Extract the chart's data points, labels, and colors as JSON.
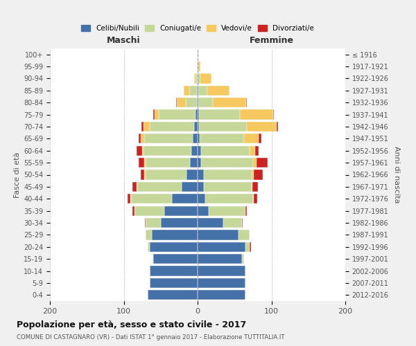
{
  "age_groups": [
    "0-4",
    "5-9",
    "10-14",
    "15-19",
    "20-24",
    "25-29",
    "30-34",
    "35-39",
    "40-44",
    "45-49",
    "50-54",
    "55-59",
    "60-64",
    "65-69",
    "70-74",
    "75-79",
    "80-84",
    "85-89",
    "90-94",
    "95-99",
    "100+"
  ],
  "birth_years": [
    "2012-2016",
    "2007-2011",
    "2002-2006",
    "1997-2001",
    "1992-1996",
    "1987-1991",
    "1982-1986",
    "1977-1981",
    "1972-1976",
    "1967-1971",
    "1962-1966",
    "1957-1961",
    "1952-1956",
    "1947-1951",
    "1942-1946",
    "1937-1941",
    "1932-1936",
    "1927-1931",
    "1922-1926",
    "1917-1921",
    "≤ 1916"
  ],
  "colors": {
    "celibi": "#4472a8",
    "coniugati": "#c5d89a",
    "vedovi": "#f5c860",
    "divorziati": "#cc2222"
  },
  "maschi": {
    "celibi": [
      68,
      65,
      65,
      60,
      65,
      62,
      50,
      45,
      35,
      22,
      15,
      10,
      8,
      7,
      5,
      3,
      1,
      1,
      0,
      0,
      0
    ],
    "coniugati": [
      0,
      0,
      0,
      1,
      3,
      8,
      20,
      40,
      55,
      60,
      55,
      60,
      65,
      65,
      60,
      50,
      15,
      10,
      3,
      1,
      0
    ],
    "vedovi": [
      0,
      0,
      0,
      0,
      0,
      0,
      0,
      0,
      1,
      1,
      2,
      2,
      2,
      5,
      8,
      5,
      12,
      8,
      2,
      0,
      0
    ],
    "divorziati": [
      0,
      0,
      0,
      0,
      0,
      0,
      1,
      3,
      4,
      5,
      5,
      8,
      8,
      3,
      3,
      2,
      1,
      0,
      0,
      0,
      0
    ]
  },
  "femmine": {
    "celibi": [
      65,
      65,
      65,
      60,
      65,
      55,
      35,
      15,
      10,
      8,
      8,
      5,
      5,
      3,
      2,
      2,
      1,
      1,
      0,
      0,
      0
    ],
    "coniugati": [
      0,
      0,
      0,
      3,
      5,
      15,
      25,
      50,
      65,
      65,
      65,
      70,
      65,
      60,
      65,
      55,
      20,
      12,
      4,
      1,
      0
    ],
    "vedovi": [
      0,
      0,
      0,
      0,
      0,
      0,
      0,
      0,
      1,
      1,
      3,
      5,
      8,
      20,
      40,
      45,
      45,
      30,
      15,
      3,
      1
    ],
    "divorziati": [
      0,
      0,
      0,
      0,
      2,
      0,
      1,
      2,
      5,
      8,
      12,
      15,
      5,
      3,
      2,
      1,
      1,
      0,
      0,
      0,
      0
    ]
  },
  "title": "Popolazione per età, sesso e stato civile - 2017",
  "subtitle": "COMUNE DI CASTAGNARO (VR) - Dati ISTAT 1° gennaio 2017 - Elaborazione TUTTITALIA.IT",
  "xlabel_left": "Maschi",
  "xlabel_right": "Femmine",
  "ylabel_left": "Fasce di età",
  "ylabel_right": "Anni di nascita",
  "xlim": 200,
  "legend_labels": [
    "Celibi/Nubili",
    "Coniugati/e",
    "Vedovi/e",
    "Divorziati/e"
  ],
  "bg_color": "#f0f0f0",
  "plot_bg": "#ffffff",
  "grid_color": "#bbbbbb"
}
